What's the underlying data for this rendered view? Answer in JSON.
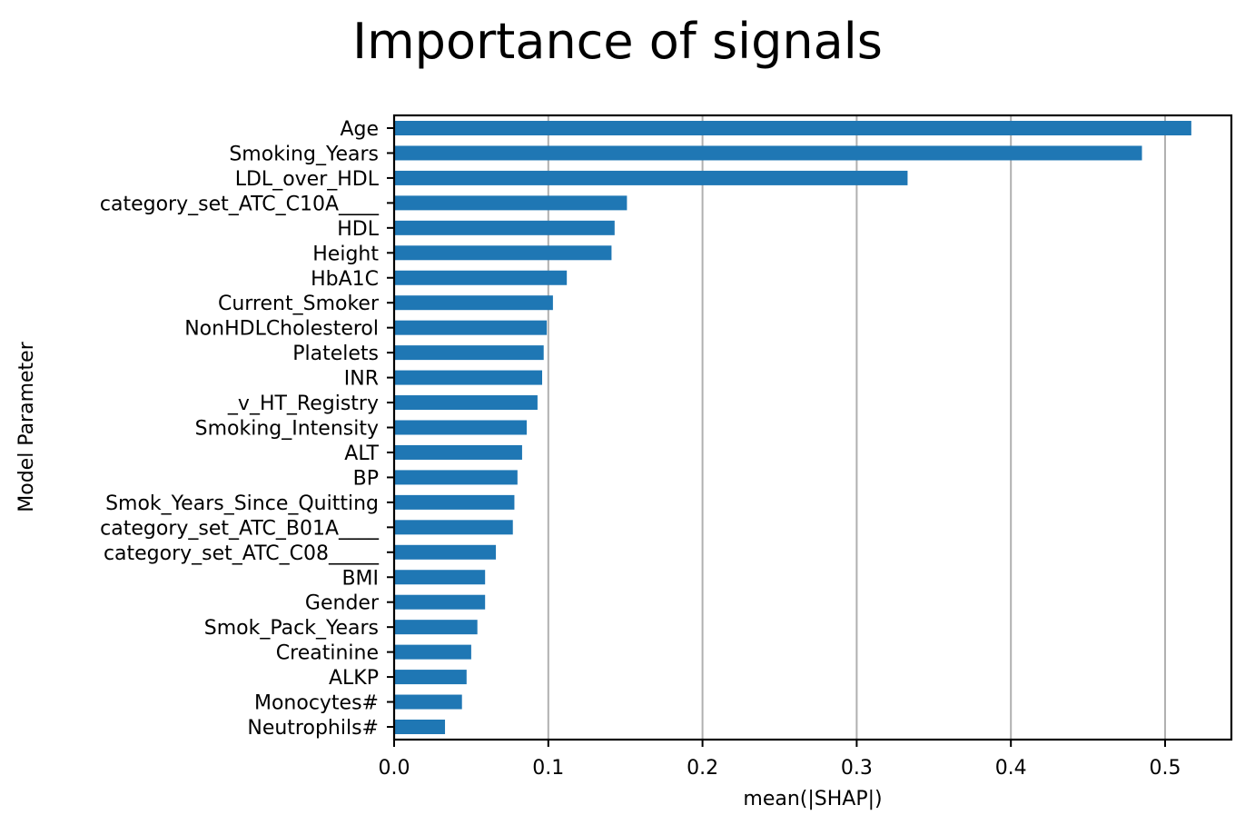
{
  "chart_data": {
    "type": "bar",
    "orientation": "horizontal",
    "title": "Importance of signals",
    "xlabel": "mean(|SHAP|)",
    "ylabel": "Model Parameter",
    "xlim": [
      0.0,
      0.543
    ],
    "xticks": [
      0.0,
      0.1,
      0.2,
      0.3,
      0.4,
      0.5
    ],
    "xtick_labels": [
      "0.0",
      "0.1",
      "0.2",
      "0.3",
      "0.4",
      "0.5"
    ],
    "grid": "x-axis vertical gridlines",
    "bar_color": "#1f77b4",
    "categories": [
      "Age",
      "Smoking_Years",
      "LDL_over_HDL",
      "category_set_ATC_C10A____",
      "HDL",
      "Height",
      "HbA1C",
      "Current_Smoker",
      "NonHDLCholesterol",
      "Platelets",
      "INR",
      "_v_HT_Registry",
      "Smoking_Intensity",
      "ALT",
      "BP",
      "Smok_Years_Since_Quitting",
      "category_set_ATC_B01A____",
      "category_set_ATC_C08_____",
      "BMI",
      "Gender",
      "Smok_Pack_Years",
      "Creatinine",
      "ALKP",
      "Monocytes#",
      "Neutrophils#"
    ],
    "values": [
      0.517,
      0.485,
      0.333,
      0.151,
      0.143,
      0.141,
      0.112,
      0.103,
      0.099,
      0.097,
      0.096,
      0.093,
      0.086,
      0.083,
      0.08,
      0.078,
      0.077,
      0.066,
      0.059,
      0.059,
      0.054,
      0.05,
      0.047,
      0.044,
      0.033
    ]
  }
}
